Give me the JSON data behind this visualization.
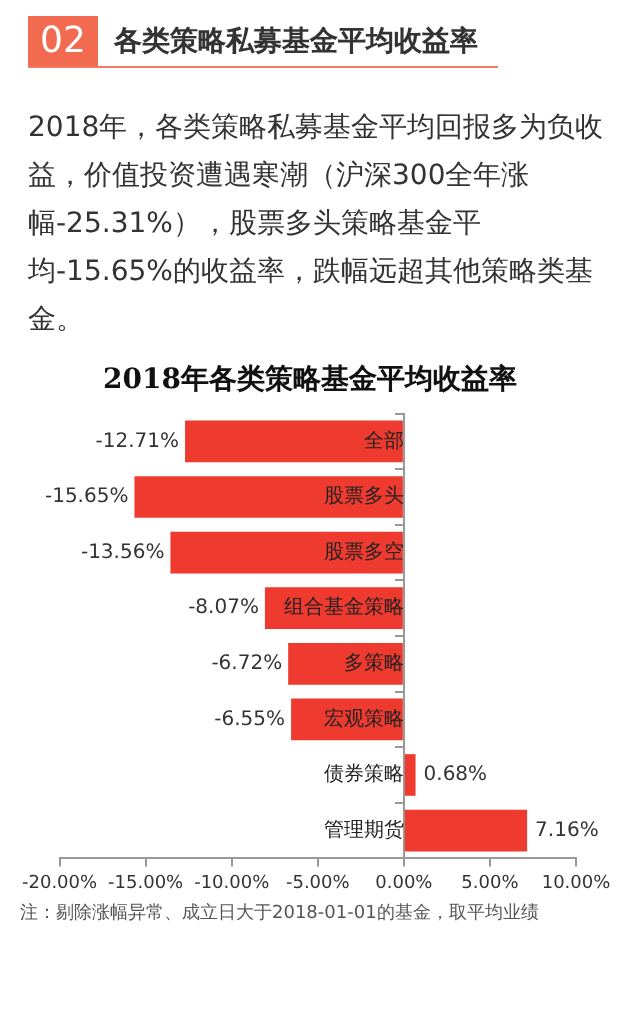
{
  "chart_data": {
    "type": "bar",
    "orientation": "horizontal",
    "title": "2018年各类策略基金平均收益率",
    "annotations": [
      "02",
      "各类策略私募基金平均收益率",
      "2018年，各类策略私募基金平均回报多为负收益，价值投资遭遇寒潮（沪深300全年涨幅-25.31%），股票多头策略基金平均-15.65%的收益率，跌幅远超其他策略类基金。",
      "注：剔除涨幅异常、成立日大于2018-01-01的基金，取平均业绩"
    ],
    "categories": [
      "全部",
      "股票多头",
      "股票多空",
      "组合基金策略",
      "多策略",
      "宏观策略",
      "债券策略",
      "管理期货"
    ],
    "values": [
      -12.71,
      -15.65,
      -13.56,
      -8.07,
      -6.72,
      -6.55,
      0.68,
      7.16
    ],
    "value_labels": [
      "-12.71%",
      "-15.65%",
      "-13.56%",
      "-8.07%",
      "-6.72%",
      "-6.55%",
      "0.68%",
      "7.16%"
    ],
    "color": "#ee3a2f",
    "xlim": [
      -20,
      10
    ],
    "xticks": [
      {
        "value": -20,
        "label": "-20.00%"
      },
      {
        "value": -15,
        "label": "-15.00%"
      },
      {
        "value": -10,
        "label": "-10.00%"
      },
      {
        "value": -5,
        "label": "-5.00%"
      },
      {
        "value": 0,
        "label": "0.00%"
      },
      {
        "value": 5,
        "label": "5.00%"
      },
      {
        "value": 10,
        "label": "10.00%"
      }
    ]
  }
}
